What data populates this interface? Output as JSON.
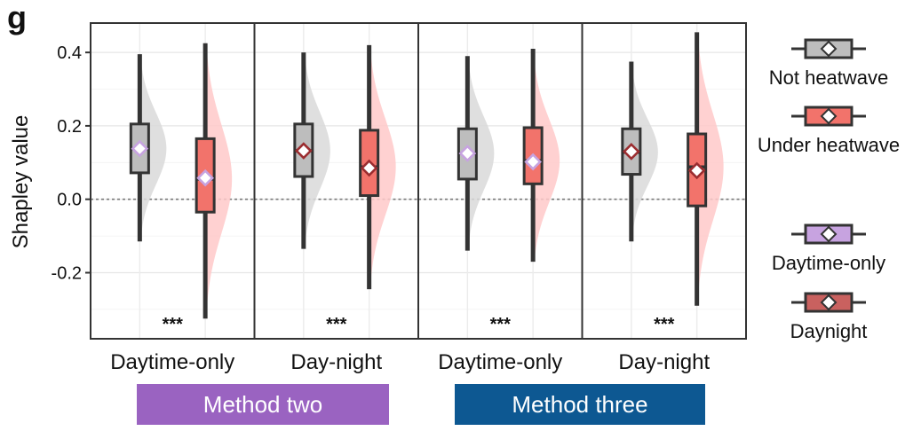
{
  "panel_label": "g",
  "colors": {
    "grey": "#bdbdbd",
    "red": "#f2736b",
    "grey_violin": "#d9d9d9",
    "red_violin": "#ffc9c9",
    "daytime_only": "#c7a3e0",
    "daynight": "#9b2d30",
    "method_two": "#9a63c1",
    "method_three": "#0d5892"
  },
  "methods": [
    {
      "label": "Method two"
    },
    {
      "label": "Method three"
    }
  ],
  "legend": {
    "items": [
      {
        "label": "Not heatwave",
        "fill": "#bdbdbd",
        "marker": "#ffffff"
      },
      {
        "label": "Under heatwave",
        "fill": "#f2736b",
        "marker": "#ffffff"
      },
      {
        "label": "Daytime-only",
        "fill": "#c7a3e0",
        "marker": "#ffffff"
      },
      {
        "label": "Daynight",
        "fill": "#c9615f",
        "marker": "#ffffff"
      }
    ]
  },
  "chart_data": {
    "type": "box-violin",
    "ylabel": "Shapley value",
    "ylim": [
      -0.38,
      0.48
    ],
    "yticks": [
      -0.2,
      0.0,
      0.2,
      0.4
    ],
    "ytick_labels": [
      "-0.2",
      "0.0",
      "0.2",
      "0.4"
    ],
    "reference_line": 0.0,
    "significance": "***",
    "panels": [
      {
        "xlabel": "Daytime-only",
        "method": "Method two",
        "groups": [
          {
            "name": "Not heatwave",
            "whisker": [
              -0.115,
              0.395
            ],
            "q1": 0.072,
            "median": 0.138,
            "q3": 0.205,
            "mean": 0.138,
            "marker": "daytime_only"
          },
          {
            "name": "Under heatwave",
            "whisker": [
              -0.325,
              0.425
            ],
            "q1": -0.035,
            "median": 0.055,
            "q3": 0.165,
            "mean": 0.058,
            "marker": "daytime_only"
          }
        ]
      },
      {
        "xlabel": "Day-night",
        "method": "Method two",
        "groups": [
          {
            "name": "Not heatwave",
            "whisker": [
              -0.135,
              0.4
            ],
            "q1": 0.062,
            "median": 0.132,
            "q3": 0.205,
            "mean": 0.132,
            "marker": "daynight"
          },
          {
            "name": "Under heatwave",
            "whisker": [
              -0.245,
              0.42
            ],
            "q1": 0.01,
            "median": 0.088,
            "q3": 0.188,
            "mean": 0.085,
            "marker": "daynight"
          }
        ]
      },
      {
        "xlabel": "Daytime-only",
        "method": "Method three",
        "groups": [
          {
            "name": "Not heatwave",
            "whisker": [
              -0.14,
              0.39
            ],
            "q1": 0.055,
            "median": 0.125,
            "q3": 0.192,
            "mean": 0.125,
            "marker": "daytime_only"
          },
          {
            "name": "Under heatwave",
            "whisker": [
              -0.17,
              0.41
            ],
            "q1": 0.042,
            "median": 0.105,
            "q3": 0.195,
            "mean": 0.102,
            "marker": "daytime_only"
          }
        ]
      },
      {
        "xlabel": "Day-night",
        "method": "Method three",
        "groups": [
          {
            "name": "Not heatwave",
            "whisker": [
              -0.115,
              0.375
            ],
            "q1": 0.068,
            "median": 0.128,
            "q3": 0.192,
            "mean": 0.13,
            "marker": "daynight"
          },
          {
            "name": "Under heatwave",
            "whisker": [
              -0.29,
              0.455
            ],
            "q1": -0.018,
            "median": 0.088,
            "q3": 0.178,
            "mean": 0.078,
            "marker": "daynight"
          }
        ]
      }
    ]
  }
}
